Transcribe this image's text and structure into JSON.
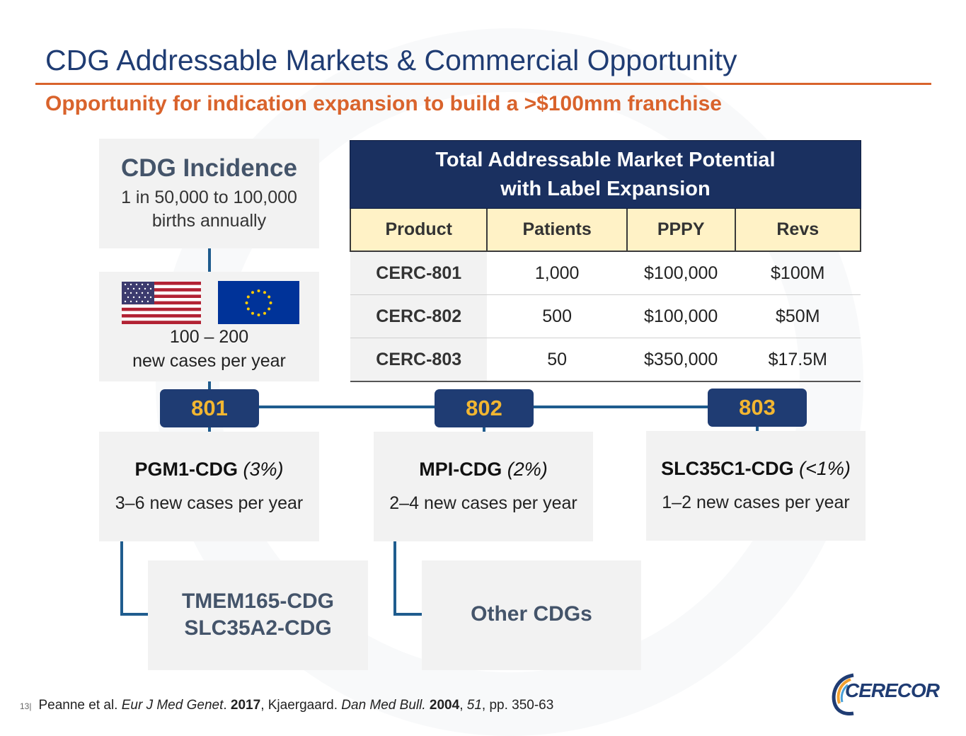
{
  "title": "CDG Addressable Markets & Commercial Opportunity",
  "subtitle": "Opportunity for indication expansion to build a >$100mm franchise",
  "incidence": {
    "heading": "CDG Incidence",
    "line1": "1 in 50,000 to 100,000",
    "line2": "births annually"
  },
  "new_cases": {
    "line1": "100 – 200",
    "line2": "new cases per year"
  },
  "badges": [
    "801",
    "802",
    "803"
  ],
  "cdg_boxes": [
    {
      "name": "PGM1-CDG",
      "pct": "(3%)",
      "cases": "3–6 new cases per year"
    },
    {
      "name": "MPI-CDG",
      "pct": "(2%)",
      "cases": "2–4 new cases per year"
    },
    {
      "name": "SLC35C1-CDG",
      "pct": "(<1%)",
      "cases": "1–2 new cases per year"
    }
  ],
  "sub_boxes": {
    "tmem_line1": "TMEM165-CDG",
    "tmem_line2": "SLC35A2-CDG",
    "other": "Other CDGs"
  },
  "table": {
    "header_line1": "Total Addressable Market Potential",
    "header_line2": "with Label Expansion",
    "columns": [
      "Product",
      "Patients",
      "PPPY",
      "Revs"
    ],
    "rows": [
      [
        "CERC-801",
        "1,000",
        "$100,000",
        "$100M"
      ],
      [
        "CERC-802",
        "500",
        "$100,000",
        "$50M"
      ],
      [
        "CERC-803",
        "50",
        "$350,000",
        "$17.5M"
      ]
    ]
  },
  "footer": {
    "page": "13|",
    "ref_author1": "Peanne et al. ",
    "ref_journal1": "Eur J Med Genet",
    "ref_sep1": ". ",
    "ref_year1": "2017",
    "ref_author2": ", Kjaergaard. ",
    "ref_journal2": "Dan Med Bull.",
    "ref_sep2": " ",
    "ref_year2": "2004",
    "ref_sep3": ", ",
    "ref_vol": "51",
    "ref_pages": ", pp. 350-63"
  },
  "logo": {
    "text": "CERECOR"
  },
  "colors": {
    "navy": "#1f3c73",
    "orange": "#d9632c",
    "gold": "#f2b631",
    "line_blue": "#1f5c8e",
    "gray_box": "#f2f2f2",
    "table_header_fill": "#fff2c6"
  }
}
